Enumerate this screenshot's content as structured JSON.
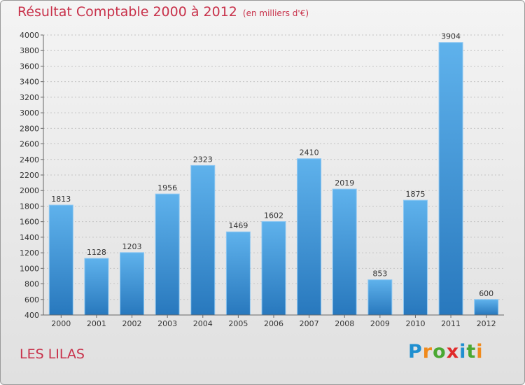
{
  "chart_data": {
    "type": "bar",
    "title": "Résultat Comptable 2000 à 2012",
    "subtitle": "(en milliers d'€)",
    "categories": [
      "2000",
      "2001",
      "2002",
      "2003",
      "2004",
      "2005",
      "2006",
      "2007",
      "2008",
      "2009",
      "2010",
      "2011",
      "2012"
    ],
    "values": [
      1813,
      1128,
      1203,
      1956,
      2323,
      1469,
      1602,
      2410,
      2019,
      853,
      1875,
      3904,
      600
    ],
    "ylim": [
      400,
      4000
    ],
    "yticks": [
      400,
      600,
      800,
      1000,
      1200,
      1400,
      1600,
      1800,
      2000,
      2200,
      2400,
      2600,
      2800,
      3000,
      3200,
      3400,
      3600,
      3800,
      4000
    ],
    "grid": true,
    "bar_color": "#4a9de0"
  },
  "commune": "LES LILAS",
  "logo": {
    "letters": [
      "P",
      "r",
      "o",
      "x",
      "i",
      "t",
      "i"
    ],
    "colors": [
      "#1f8fd0",
      "#f08a1c",
      "#4aa832",
      "#e02a2a",
      "#1f8fd0",
      "#4aa832",
      "#f08a1c"
    ]
  }
}
